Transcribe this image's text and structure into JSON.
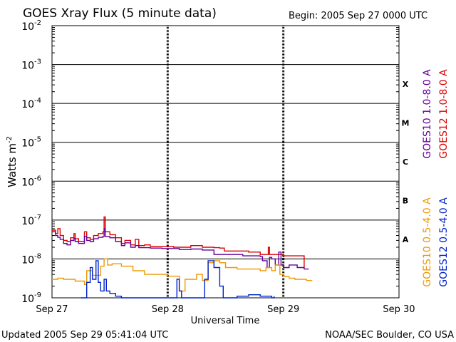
{
  "chart_data": {
    "type": "line",
    "title": "GOES Xray Flux (5 minute data)",
    "begin_label": "Begin:  2005 Sep 27 0000 UTC",
    "xlabel": "Universal Time",
    "ylabel": "Watts m",
    "ylabel_sup": "-2",
    "yscale": "log",
    "ylim": [
      1e-09,
      0.01
    ],
    "xlim_days": [
      0,
      3
    ],
    "grid": true,
    "y_ticks": [
      {
        "base": "10",
        "exp": "-2",
        "value": 0.01
      },
      {
        "base": "10",
        "exp": "-3",
        "value": 0.001
      },
      {
        "base": "10",
        "exp": "-4",
        "value": 0.0001
      },
      {
        "base": "10",
        "exp": "-5",
        "value": 1e-05
      },
      {
        "base": "10",
        "exp": "-6",
        "value": 1e-06
      },
      {
        "base": "10",
        "exp": "-7",
        "value": 1e-07
      },
      {
        "base": "10",
        "exp": "-8",
        "value": 1e-08
      },
      {
        "base": "10",
        "exp": "-9",
        "value": 1e-09
      }
    ],
    "x_ticks": [
      {
        "label": "Sep 27",
        "day": 0
      },
      {
        "label": "Sep 28",
        "day": 1
      },
      {
        "label": "Sep 29",
        "day": 2
      },
      {
        "label": "Sep 30",
        "day": 3
      }
    ],
    "flare_classes": [
      {
        "label": "X",
        "value": 0.000316
      },
      {
        "label": "M",
        "value": 3.16e-05
      },
      {
        "label": "C",
        "value": 3.16e-06
      },
      {
        "label": "B",
        "value": 3.16e-07
      },
      {
        "label": "A",
        "value": 3.16e-08
      }
    ],
    "series": [
      {
        "name": "GOES12 1.0-8.0 A",
        "color": "#dd0000",
        "points": [
          [
            0,
            5.5e-08
          ],
          [
            0.03,
            4.5e-08
          ],
          [
            0.05,
            6e-08
          ],
          [
            0.07,
            4e-08
          ],
          [
            0.1,
            3e-08
          ],
          [
            0.13,
            2.8e-08
          ],
          [
            0.16,
            3.5e-08
          ],
          [
            0.19,
            4.5e-08
          ],
          [
            0.2,
            3.3e-08
          ],
          [
            0.23,
            2.8e-08
          ],
          [
            0.28,
            5e-08
          ],
          [
            0.3,
            3.5e-08
          ],
          [
            0.33,
            3.2e-08
          ],
          [
            0.36,
            4e-08
          ],
          [
            0.38,
            4e-08
          ],
          [
            0.4,
            4.5e-08
          ],
          [
            0.44,
            5e-08
          ],
          [
            0.45,
            1.2e-07
          ],
          [
            0.46,
            5e-08
          ],
          [
            0.5,
            4.2e-08
          ],
          [
            0.55,
            3.5e-08
          ],
          [
            0.6,
            2.5e-08
          ],
          [
            0.63,
            3e-08
          ],
          [
            0.68,
            2.3e-08
          ],
          [
            0.72,
            3.2e-08
          ],
          [
            0.75,
            2.2e-08
          ],
          [
            0.8,
            2.3e-08
          ],
          [
            0.85,
            2.1e-08
          ],
          [
            0.95,
            2.1e-08
          ],
          [
            1.05,
            2e-08
          ],
          [
            1.15,
            2e-08
          ],
          [
            1.2,
            2.2e-08
          ],
          [
            1.3,
            2e-08
          ],
          [
            1.4,
            1.95e-08
          ],
          [
            1.45,
            1.9e-08
          ],
          [
            1.49,
            1.6e-08
          ],
          [
            1.6,
            1.6e-08
          ],
          [
            1.7,
            1.5e-08
          ],
          [
            1.79,
            1.5e-08
          ],
          [
            1.8,
            1.3e-08
          ],
          [
            1.85,
            1.3e-08
          ],
          [
            1.87,
            2e-08
          ],
          [
            1.88,
            1.3e-08
          ],
          [
            1.95,
            1.3e-08
          ],
          [
            2.0,
            1.2e-08
          ],
          [
            2.15,
            1.2e-08
          ],
          [
            2.18,
            6e-09
          ]
        ]
      },
      {
        "name": "GOES10 1.0-8.0 A",
        "color": "#660099",
        "points": [
          [
            0,
            5e-08
          ],
          [
            0.03,
            4e-08
          ],
          [
            0.05,
            3.6e-08
          ],
          [
            0.07,
            3.2e-08
          ],
          [
            0.1,
            2.5e-08
          ],
          [
            0.13,
            2.3e-08
          ],
          [
            0.16,
            3e-08
          ],
          [
            0.19,
            3.4e-08
          ],
          [
            0.2,
            2.8e-08
          ],
          [
            0.23,
            2.5e-08
          ],
          [
            0.28,
            3.8e-08
          ],
          [
            0.3,
            3e-08
          ],
          [
            0.33,
            2.8e-08
          ],
          [
            0.36,
            3.3e-08
          ],
          [
            0.4,
            3.6e-08
          ],
          [
            0.44,
            3.8e-08
          ],
          [
            0.45,
            6e-08
          ],
          [
            0.46,
            3.8e-08
          ],
          [
            0.5,
            3.5e-08
          ],
          [
            0.55,
            2.8e-08
          ],
          [
            0.6,
            2.2e-08
          ],
          [
            0.63,
            2.6e-08
          ],
          [
            0.68,
            2e-08
          ],
          [
            0.72,
            2.2e-08
          ],
          [
            0.75,
            1.95e-08
          ],
          [
            0.85,
            1.9e-08
          ],
          [
            0.95,
            1.85e-08
          ],
          [
            1.1,
            1.75e-08
          ],
          [
            1.15,
            1.75e-08
          ],
          [
            1.2,
            1.8e-08
          ],
          [
            1.3,
            1.7e-08
          ],
          [
            1.4,
            1.3e-08
          ],
          [
            1.5,
            1.3e-08
          ],
          [
            1.65,
            1.2e-08
          ],
          [
            1.8,
            1.15e-08
          ],
          [
            1.82,
            9e-09
          ],
          [
            1.86,
            6e-09
          ],
          [
            1.88,
            1.1e-08
          ],
          [
            1.9,
            1e-08
          ],
          [
            1.93,
            7e-09
          ],
          [
            1.96,
            1.5e-08
          ],
          [
            1.98,
            7e-09
          ],
          [
            2.0,
            6e-09
          ],
          [
            2.05,
            7e-09
          ],
          [
            2.12,
            6e-09
          ],
          [
            2.18,
            5.5e-09
          ],
          [
            2.22,
            5.5e-09
          ]
        ]
      },
      {
        "name": "GOES10 0.5-4.0 A",
        "color": "#ee9900",
        "points": [
          [
            0,
            3e-09
          ],
          [
            0.05,
            3.2e-09
          ],
          [
            0.1,
            3e-09
          ],
          [
            0.2,
            2.7e-09
          ],
          [
            0.28,
            2.2e-09
          ],
          [
            0.3,
            5e-09
          ],
          [
            0.35,
            3.8e-09
          ],
          [
            0.42,
            6.5e-09
          ],
          [
            0.45,
            1e-08
          ],
          [
            0.48,
            7e-09
          ],
          [
            0.52,
            7.5e-09
          ],
          [
            0.6,
            6.5e-09
          ],
          [
            0.7,
            5e-09
          ],
          [
            0.8,
            4e-09
          ],
          [
            0.9,
            4e-09
          ],
          [
            1.0,
            3.6e-09
          ],
          [
            1.05,
            3.6e-09
          ],
          [
            1.1,
            1.5e-09
          ],
          [
            1.15,
            3e-09
          ],
          [
            1.2,
            3e-09
          ],
          [
            1.25,
            4e-09
          ],
          [
            1.3,
            2.8e-09
          ],
          [
            1.35,
            8e-09
          ],
          [
            1.4,
            9e-09
          ],
          [
            1.45,
            8e-09
          ],
          [
            1.5,
            6e-09
          ],
          [
            1.6,
            5.5e-09
          ],
          [
            1.7,
            5.5e-09
          ],
          [
            1.8,
            5e-09
          ],
          [
            1.85,
            6e-09
          ],
          [
            1.9,
            5e-09
          ],
          [
            1.93,
            7e-09
          ],
          [
            1.97,
            4e-09
          ],
          [
            2.0,
            3.5e-09
          ],
          [
            2.05,
            3.2e-09
          ],
          [
            2.1,
            3e-09
          ],
          [
            2.2,
            2.8e-09
          ],
          [
            2.25,
            2.8e-09
          ]
        ]
      },
      {
        "name": "GOES12 0.5-4.0 A",
        "color": "#0022cc",
        "points": [
          [
            0.25,
            1e-09
          ],
          [
            0.3,
            2.5e-09
          ],
          [
            0.33,
            6e-09
          ],
          [
            0.35,
            3e-09
          ],
          [
            0.38,
            9e-09
          ],
          [
            0.4,
            2.5e-09
          ],
          [
            0.42,
            1.5e-09
          ],
          [
            0.45,
            3e-09
          ],
          [
            0.47,
            1.5e-09
          ],
          [
            0.5,
            1.3e-09
          ],
          [
            0.55,
            1.1e-09
          ],
          [
            0.6,
            1e-09
          ],
          [
            0.7,
            1e-09
          ],
          [
            0.8,
            1e-09
          ],
          [
            1.05,
            1e-09
          ],
          [
            1.08,
            3e-09
          ],
          [
            1.1,
            1.5e-09
          ],
          [
            1.12,
            1e-09
          ],
          [
            1.3,
            1e-09
          ],
          [
            1.32,
            3e-09
          ],
          [
            1.35,
            9e-09
          ],
          [
            1.4,
            6e-09
          ],
          [
            1.45,
            2e-09
          ],
          [
            1.48,
            1e-09
          ],
          [
            1.5,
            1e-09
          ],
          [
            1.6,
            1.1e-09
          ],
          [
            1.7,
            1.2e-09
          ],
          [
            1.8,
            1.1e-09
          ],
          [
            1.9,
            1e-09
          ],
          [
            1.92,
            1.1e-09
          ]
        ]
      }
    ]
  },
  "footer": {
    "updated": "Updated 2005 Sep 29 05:41:04 UTC",
    "source": "NOAA/SEC Boulder, CO USA"
  }
}
